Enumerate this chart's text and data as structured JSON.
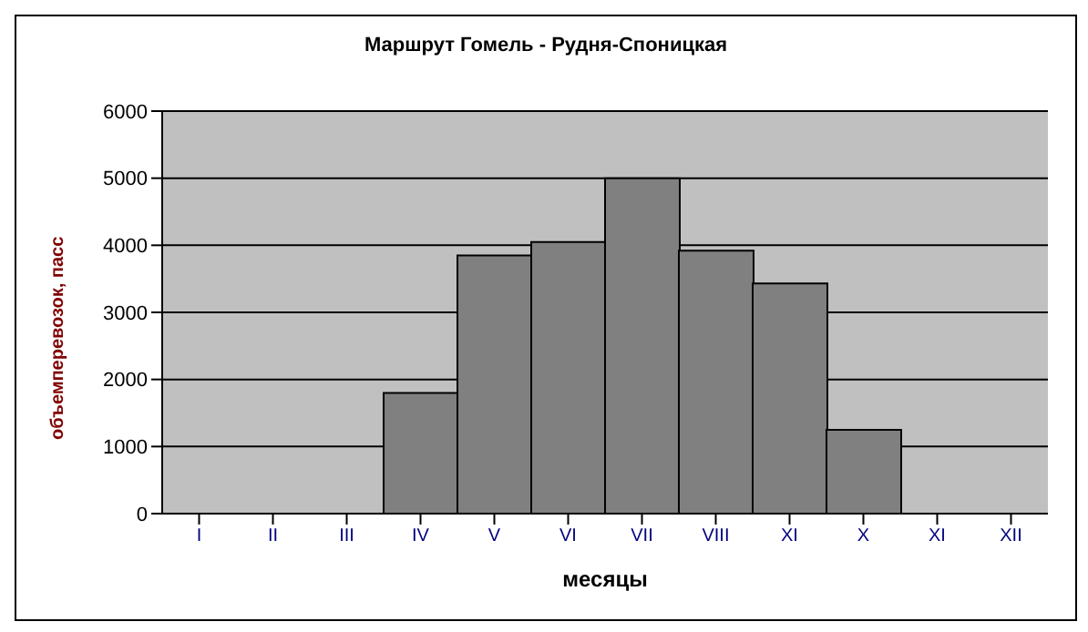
{
  "chart_data": {
    "type": "bar",
    "title": "Маршрут Гомель - Рудня-Споницкая",
    "xlabel": "месяцы",
    "ylabel": "объемперевозок, пасс",
    "categories": [
      "I",
      "II",
      "III",
      "IV",
      "V",
      "VI",
      "VII",
      "VIII",
      "XI",
      "X",
      "XI",
      "XII"
    ],
    "values": [
      0,
      0,
      0,
      1800,
      3850,
      4050,
      5000,
      3920,
      3430,
      1250,
      0,
      0
    ],
    "color": "#808080",
    "ylim": [
      0,
      6000
    ],
    "yticks": [
      0,
      1000,
      2000,
      3000,
      4000,
      5000,
      6000
    ],
    "grid": "y"
  }
}
